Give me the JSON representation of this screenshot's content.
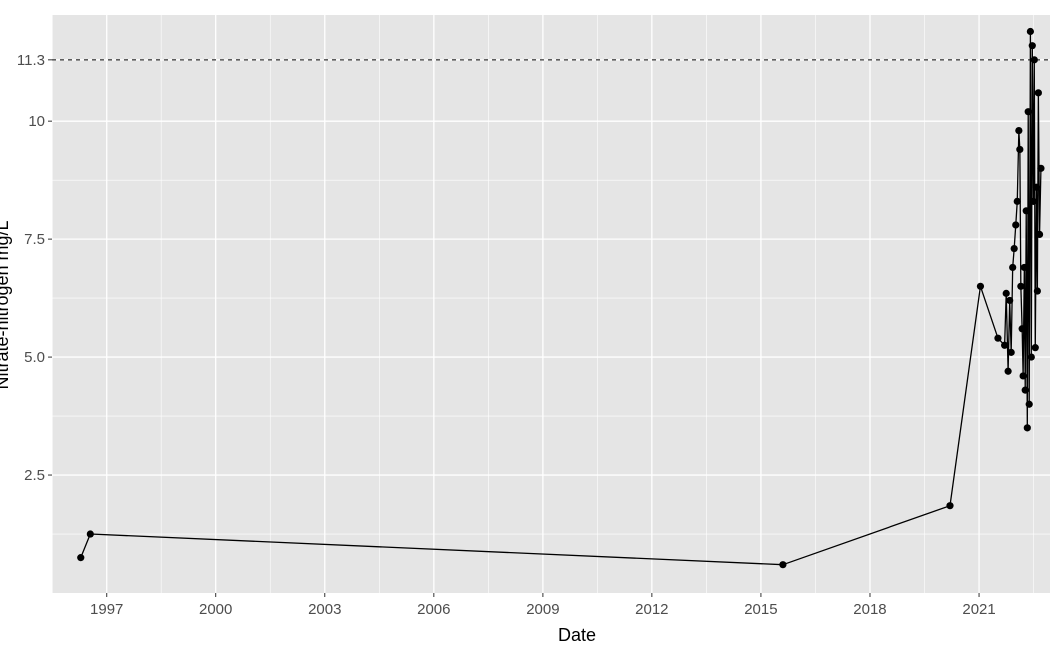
{
  "chart_data": {
    "type": "line",
    "title": "",
    "xlabel": "Date",
    "ylabel": "Nitrate-nitrogen mg/L",
    "x_type": "date",
    "xlim": [
      "1995-07-01",
      "2022-12-15"
    ],
    "ylim": [
      0.0,
      12.25
    ],
    "x_ticks": [
      "1997",
      "2000",
      "2003",
      "2006",
      "2009",
      "2012",
      "2015",
      "2018",
      "2021"
    ],
    "y_ticks": [
      2.5,
      5.0,
      7.5,
      10,
      11.3
    ],
    "y_tick_labels": [
      "2.5",
      "5.0",
      "7.5",
      "10",
      "11.3"
    ],
    "reference_line": {
      "y": 11.3,
      "style": "dashed"
    },
    "grid": true,
    "colors": {
      "panel": "#e5e5e5",
      "grid": "#ffffff",
      "line": "#000000",
      "point": "#000000",
      "tick_text": "#4d4d4d"
    },
    "series": [
      {
        "points": [
          {
            "x": "1996-04-15",
            "y": 0.75
          },
          {
            "x": "1996-07-20",
            "y": 1.25
          },
          {
            "x": "2015-08-10",
            "y": 0.6
          },
          {
            "x": "2020-03-15",
            "y": 1.85
          },
          {
            "x": "2021-01-15",
            "y": 6.5
          },
          {
            "x": "2021-07-10",
            "y": 5.4
          },
          {
            "x": "2021-09-15",
            "y": 5.25
          },
          {
            "x": "2021-10-01",
            "y": 6.35
          },
          {
            "x": "2021-10-20",
            "y": 4.7
          },
          {
            "x": "2021-11-05",
            "y": 6.2
          },
          {
            "x": "2021-11-20",
            "y": 5.1
          },
          {
            "x": "2021-12-05",
            "y": 6.9
          },
          {
            "x": "2021-12-20",
            "y": 7.3
          },
          {
            "x": "2022-01-05",
            "y": 7.8
          },
          {
            "x": "2022-01-20",
            "y": 8.3
          },
          {
            "x": "2022-02-05",
            "y": 9.8
          },
          {
            "x": "2022-02-15",
            "y": 9.4
          },
          {
            "x": "2022-02-25",
            "y": 6.5
          },
          {
            "x": "2022-03-10",
            "y": 5.6
          },
          {
            "x": "2022-03-20",
            "y": 4.6
          },
          {
            "x": "2022-04-01",
            "y": 6.9
          },
          {
            "x": "2022-04-10",
            "y": 4.3
          },
          {
            "x": "2022-04-20",
            "y": 8.1
          },
          {
            "x": "2022-05-01",
            "y": 3.5
          },
          {
            "x": "2022-05-10",
            "y": 10.2
          },
          {
            "x": "2022-05-20",
            "y": 4.0
          },
          {
            "x": "2022-06-01",
            "y": 11.9
          },
          {
            "x": "2022-06-10",
            "y": 5.0
          },
          {
            "x": "2022-06-20",
            "y": 11.6
          },
          {
            "x": "2022-07-01",
            "y": 8.3
          },
          {
            "x": "2022-07-10",
            "y": 11.3
          },
          {
            "x": "2022-07-20",
            "y": 5.2
          },
          {
            "x": "2022-08-01",
            "y": 8.6
          },
          {
            "x": "2022-08-10",
            "y": 6.4
          },
          {
            "x": "2022-08-20",
            "y": 10.6
          },
          {
            "x": "2022-09-01",
            "y": 7.6
          },
          {
            "x": "2022-09-15",
            "y": 9.0
          }
        ]
      }
    ]
  }
}
